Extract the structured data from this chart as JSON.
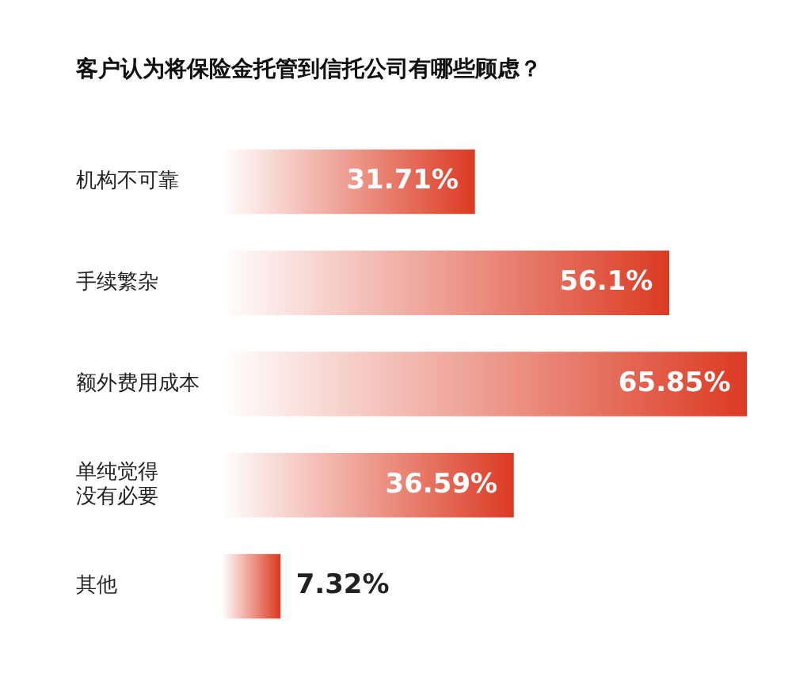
{
  "chart_data": {
    "type": "bar",
    "orientation": "horizontal",
    "title": "客户认为将保险金托管到信托公司有哪些顾虑？",
    "categories": [
      "机构不可靠",
      "手续繁杂",
      "额外费用成本",
      "单纯觉得没有必要",
      "其他"
    ],
    "values": [
      31.71,
      56.1,
      65.85,
      36.59,
      7.32
    ],
    "value_labels": [
      "31.71%",
      "56.1%",
      "65.85%",
      "36.59%",
      "7.32%"
    ],
    "color": "#dc3a22",
    "xlim": [
      0,
      66
    ],
    "tick_labels": "y",
    "legend": false
  }
}
